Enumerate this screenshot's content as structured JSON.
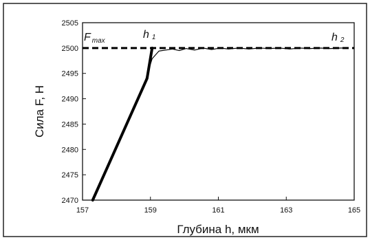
{
  "chart_data": {
    "type": "line",
    "title": "",
    "xlabel": "Глубина h, мкм",
    "ylabel": "Сила F, Н",
    "xlim": [
      157,
      165
    ],
    "ylim": [
      2470,
      2505
    ],
    "x_ticks": [
      157,
      159,
      161,
      163,
      165
    ],
    "y_ticks": [
      2470,
      2475,
      2480,
      2485,
      2490,
      2495,
      2500,
      2505
    ],
    "x_tick_labels": [
      "157",
      "159",
      "161",
      "163",
      "165"
    ],
    "y_tick_labels": [
      "2470",
      "2475",
      "2480",
      "2485",
      "2490",
      "2495",
      "2500",
      "2505"
    ],
    "grid": false,
    "legend": "none",
    "reference_line": {
      "y": 2500,
      "style": "dashed",
      "label_main": "F",
      "label_sub": "max"
    },
    "annotations": [
      {
        "main": "h",
        "sub": "1",
        "x": 159.0,
        "y": 2500
      },
      {
        "main": "h",
        "sub": "2",
        "x": 164.7,
        "y": 2500
      }
    ],
    "series": [
      {
        "style": "thick",
        "x": [
          157.3,
          157.7,
          158.1,
          158.5,
          158.9,
          159.05
        ],
        "y": [
          2470,
          2476,
          2482,
          2488,
          2494,
          2500
        ]
      },
      {
        "style": "thin",
        "x": [
          157.28,
          157.7,
          158.1,
          158.5,
          158.85,
          159.05,
          159.25,
          159.45,
          159.65,
          159.85,
          160.05,
          160.3,
          160.55,
          160.8,
          161.05,
          161.3,
          161.6,
          161.9,
          162.2,
          162.5,
          162.8,
          163.1,
          163.4,
          163.7,
          164.0,
          164.3,
          164.6,
          164.8
        ],
        "y": [
          2470,
          2476.3,
          2482.2,
          2488.1,
          2493.6,
          2497.9,
          2499.4,
          2499.6,
          2499.8,
          2499.5,
          2499.9,
          2499.6,
          2500.0,
          2499.7,
          2500.0,
          2499.8,
          2500.0,
          2499.8,
          2500.0,
          2499.9,
          2500.0,
          2499.8,
          2500.0,
          2499.9,
          2500.0,
          2499.9,
          2500.0,
          2500.0
        ]
      }
    ]
  }
}
